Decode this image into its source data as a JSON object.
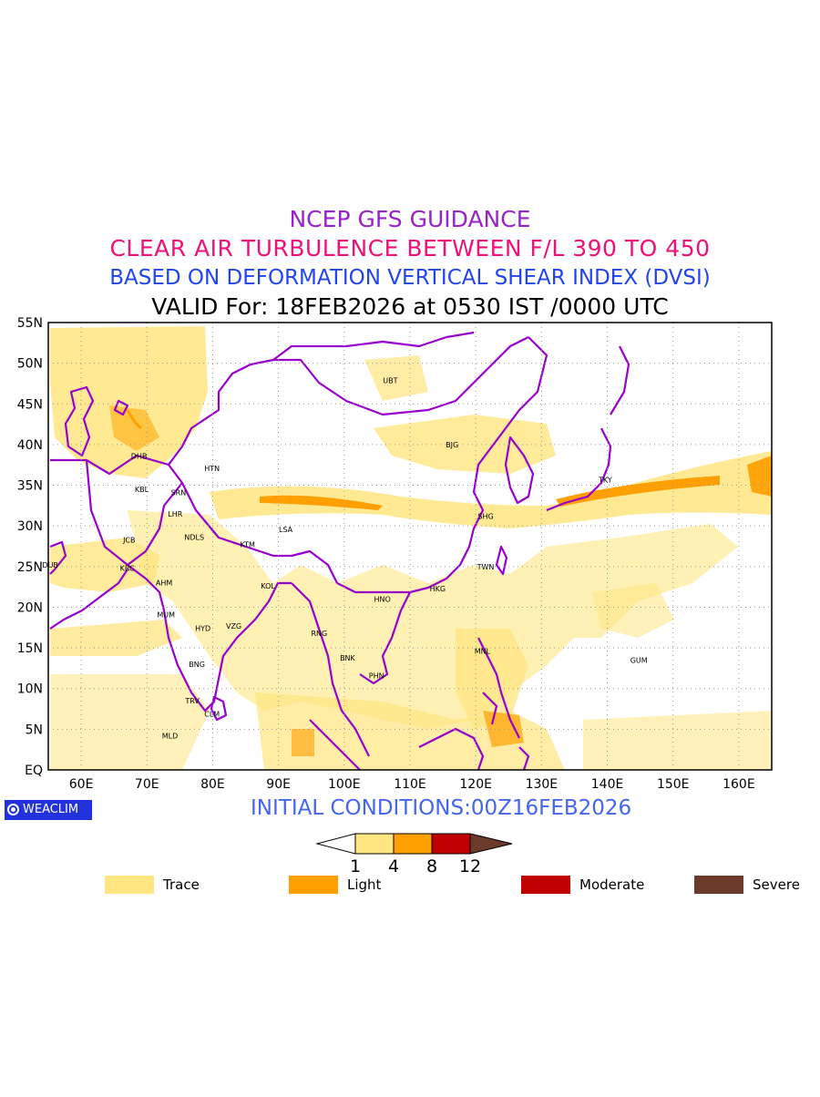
{
  "titles": {
    "line1": "NCEP GFS GUIDANCE",
    "line2": "CLEAR AIR TURBULENCE BETWEEN F/L 390 TO 450",
    "line3": "BASED ON DEFORMATION VERTICAL SHEAR INDEX (DVSI)",
    "line4": "VALID For: 18FEB2026 at 0530 IST /0000 UTC",
    "line1_color": "#9922cc",
    "line2_color": "#ee1177",
    "line3_color": "#2244ee",
    "line4_color": "#000000"
  },
  "map": {
    "lon_range": [
      55,
      165
    ],
    "lat_range": [
      0,
      55
    ],
    "lat_ticks": [
      "EQ",
      "5N",
      "10N",
      "15N",
      "20N",
      "25N",
      "30N",
      "35N",
      "40N",
      "45N",
      "50N",
      "55N"
    ],
    "lon_ticks": [
      "60E",
      "70E",
      "80E",
      "90E",
      "100E",
      "110E",
      "120E",
      "130E",
      "140E",
      "150E",
      "160E"
    ],
    "boundary_color": "#9900cc",
    "grid": "dotted",
    "stations": [
      {
        "code": "UBT",
        "lon": 107,
        "lat": 47.9
      },
      {
        "code": "BJG",
        "lon": 116.4,
        "lat": 40
      },
      {
        "code": "DHB",
        "lon": 68.8,
        "lat": 38.6
      },
      {
        "code": "HTN",
        "lon": 79.9,
        "lat": 37.1
      },
      {
        "code": "TKY",
        "lon": 139.7,
        "lat": 35.7
      },
      {
        "code": "KBL",
        "lon": 69.2,
        "lat": 34.5
      },
      {
        "code": "SRN",
        "lon": 74.8,
        "lat": 34.1
      },
      {
        "code": "LHR",
        "lon": 74.3,
        "lat": 31.5
      },
      {
        "code": "SHG",
        "lon": 121.5,
        "lat": 31.2
      },
      {
        "code": "LSA",
        "lon": 91.1,
        "lat": 29.6
      },
      {
        "code": "JCB",
        "lon": 67.3,
        "lat": 28.3
      },
      {
        "code": "NDLS",
        "lon": 77.2,
        "lat": 28.6
      },
      {
        "code": "KTM",
        "lon": 85.3,
        "lat": 27.7
      },
      {
        "code": "DUB",
        "lon": 55.3,
        "lat": 25.2
      },
      {
        "code": "KRC",
        "lon": 67,
        "lat": 24.8
      },
      {
        "code": "TWN",
        "lon": 121.5,
        "lat": 25
      },
      {
        "code": "AHM",
        "lon": 72.6,
        "lat": 23
      },
      {
        "code": "KOL",
        "lon": 88.4,
        "lat": 22.6
      },
      {
        "code": "HKG",
        "lon": 114.2,
        "lat": 22.3
      },
      {
        "code": "HNO",
        "lon": 105.8,
        "lat": 21
      },
      {
        "code": "MUM",
        "lon": 72.9,
        "lat": 19.1
      },
      {
        "code": "HYD",
        "lon": 78.5,
        "lat": 17.4
      },
      {
        "code": "VZG",
        "lon": 83.2,
        "lat": 17.7
      },
      {
        "code": "RNG",
        "lon": 96.2,
        "lat": 16.8
      },
      {
        "code": "MNL",
        "lon": 121,
        "lat": 14.6
      },
      {
        "code": "GUM",
        "lon": 144.8,
        "lat": 13.5
      },
      {
        "code": "BNK",
        "lon": 100.5,
        "lat": 13.8
      },
      {
        "code": "BNG",
        "lon": 77.6,
        "lat": 13
      },
      {
        "code": "PHN",
        "lon": 104.9,
        "lat": 11.6
      },
      {
        "code": "TRV",
        "lon": 76.9,
        "lat": 8.5
      },
      {
        "code": "CLM",
        "lon": 79.9,
        "lat": 6.9
      },
      {
        "code": "MLD",
        "lon": 73.5,
        "lat": 4.2
      }
    ]
  },
  "footer": {
    "logo_text": "WEACLIM",
    "logo_icon": "weaclim-ring-icon",
    "initial_conditions": "INITIAL CONDITIONS:00Z16FEB2026"
  },
  "colorbar": {
    "breaks": [
      "1",
      "4",
      "8",
      "12"
    ],
    "colors": [
      "#ffe680",
      "#ff9f00",
      "#c00000",
      "#6b3a2a"
    ]
  },
  "legend": [
    {
      "label": "Trace",
      "color": "#ffe680"
    },
    {
      "label": "Light",
      "color": "#ffa000"
    },
    {
      "label": "Moderate",
      "color": "#c00000"
    },
    {
      "label": "Severe",
      "color": "#6b3a2a"
    }
  ]
}
